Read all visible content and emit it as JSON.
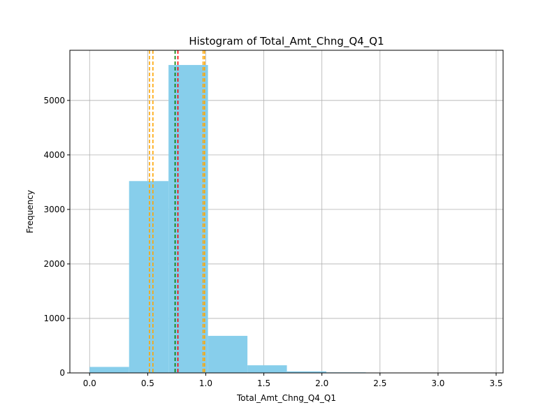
{
  "chart_data": {
    "type": "bar",
    "title": "Histogram of Total_Amt_Chng_Q4_Q1",
    "xlabel": "Total_Amt_Chng_Q4_Q1",
    "ylabel": "Frequency",
    "xlim": [
      -0.17,
      3.56
    ],
    "ylim": [
      0,
      5920
    ],
    "grid": true,
    "bar_color": "#87CEEB",
    "bins": [
      {
        "start": 0.0,
        "end": 0.3397,
        "value": 110
      },
      {
        "start": 0.3397,
        "end": 0.6794,
        "value": 3520
      },
      {
        "start": 0.6794,
        "end": 1.0191,
        "value": 5650
      },
      {
        "start": 1.0191,
        "end": 1.3588,
        "value": 680
      },
      {
        "start": 1.3588,
        "end": 1.6985,
        "value": 140
      },
      {
        "start": 1.6985,
        "end": 2.0382,
        "value": 28
      },
      {
        "start": 2.0382,
        "end": 2.3779,
        "value": 10
      },
      {
        "start": 2.3779,
        "end": 2.7176,
        "value": 3
      },
      {
        "start": 2.7176,
        "end": 3.0573,
        "value": 2
      },
      {
        "start": 3.0573,
        "end": 3.397,
        "value": 1
      }
    ],
    "reference_lines": [
      {
        "x": 0.515,
        "color": "#FFA500"
      },
      {
        "x": 0.545,
        "color": "#FFA500"
      },
      {
        "x": 0.736,
        "color": "#008000"
      },
      {
        "x": 0.76,
        "color": "#FF0000"
      },
      {
        "x": 0.977,
        "color": "#FFA500"
      },
      {
        "x": 0.99,
        "color": "#FFA500"
      }
    ],
    "x_ticks": [
      {
        "value": 0.0,
        "label": "0.0"
      },
      {
        "value": 0.5,
        "label": "0.5"
      },
      {
        "value": 1.0,
        "label": "1.0"
      },
      {
        "value": 1.5,
        "label": "1.5"
      },
      {
        "value": 2.0,
        "label": "2.0"
      },
      {
        "value": 2.5,
        "label": "2.5"
      },
      {
        "value": 3.0,
        "label": "3.0"
      },
      {
        "value": 3.5,
        "label": "3.5"
      }
    ],
    "y_ticks": [
      {
        "value": 0,
        "label": "0"
      },
      {
        "value": 1000,
        "label": "1000"
      },
      {
        "value": 2000,
        "label": "2000"
      },
      {
        "value": 3000,
        "label": "3000"
      },
      {
        "value": 4000,
        "label": "4000"
      },
      {
        "value": 5000,
        "label": "5000"
      }
    ]
  }
}
